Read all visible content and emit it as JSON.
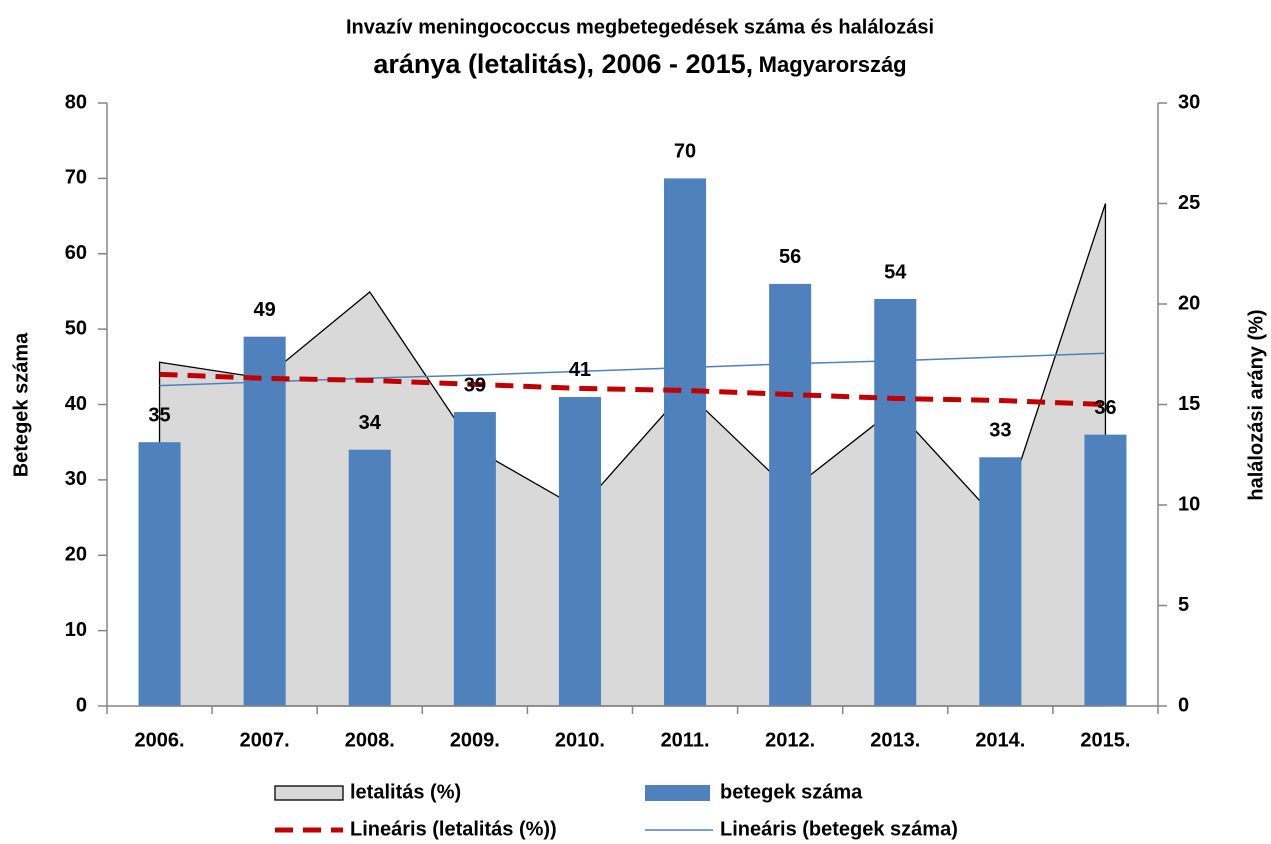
{
  "chart_data": {
    "type": "bar",
    "title": [
      "Invazív meningococcus megbetegedések száma és halálozási",
      "aránya (letalitás),  2006 - 2015,",
      "Magyarország"
    ],
    "categories": [
      "2006.",
      "2007.",
      "2008.",
      "2009.",
      "2010.",
      "2011.",
      "2012.",
      "2013.",
      "2014.",
      "2015."
    ],
    "series": [
      {
        "name": "letalitás (%)",
        "type": "area",
        "axis": "y2",
        "color": "#d9d9d9",
        "values": [
          17.1,
          16.3,
          20.6,
          12.8,
          9.8,
          15.7,
          10.7,
          14.8,
          9.1,
          25
        ]
      },
      {
        "name": "betegek száma",
        "type": "bar",
        "color": "#4f81bd",
        "values": [
          35,
          49,
          34,
          39,
          41,
          70,
          56,
          54,
          33,
          36
        ]
      },
      {
        "name": "Lineáris (letalitás (%))",
        "type": "line",
        "axis": "y2",
        "dashed": true,
        "color": "#c00000",
        "values": [
          16.5,
          16.3,
          16.2,
          16.0,
          15.8,
          15.7,
          15.5,
          15.3,
          15.2,
          15.0
        ]
      },
      {
        "name": "Lineáris (betegek száma)",
        "type": "line",
        "color": "#4f81bd",
        "values": [
          42.5,
          43.0,
          43.5,
          43.9,
          44.4,
          44.9,
          45.4,
          45.8,
          46.3,
          46.8
        ]
      }
    ],
    "ylabel": "Betegek száma",
    "y2label": "halálozási arány (%)",
    "ylim": [
      0,
      80
    ],
    "yticks": [
      0,
      10,
      20,
      30,
      40,
      50,
      60,
      70,
      80
    ],
    "y2lim": [
      0,
      30
    ],
    "y2ticks": [
      0,
      5,
      10,
      15,
      20,
      25,
      30
    ],
    "legend": "bottom"
  }
}
